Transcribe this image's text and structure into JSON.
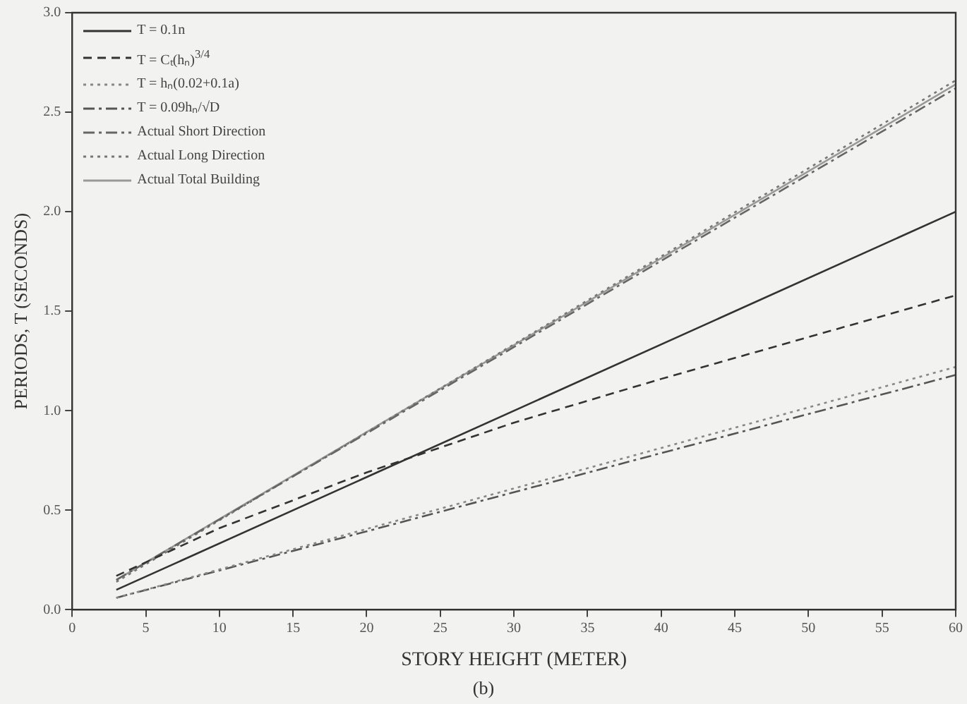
{
  "chart_data": {
    "type": "line",
    "xlabel": "STORY HEIGHT (METER)",
    "ylabel": "PERIODS, T (SECONDS)",
    "annotations": [
      "(b)"
    ],
    "xlim": [
      0,
      60
    ],
    "xticks": [
      0,
      5,
      10,
      15,
      20,
      25,
      30,
      35,
      40,
      45,
      50,
      55,
      60
    ],
    "ylim": [
      0,
      3
    ],
    "yticks": [
      {
        "value": 0,
        "label": "0.0"
      },
      {
        "value": 0.5,
        "label": "0.5"
      },
      {
        "value": 1,
        "label": "1.0"
      },
      {
        "value": 1.5,
        "label": "1.5"
      },
      {
        "value": 2,
        "label": "2.0"
      },
      {
        "value": 2.5,
        "label": "2.5"
      },
      {
        "value": 3,
        "label": "3.0"
      }
    ],
    "grid": false,
    "legend": "top left",
    "marker": "none",
    "series": [
      {
        "name": "T = 0.1n",
        "color": "#333333",
        "line_style": "solid",
        "x": [
          3,
          60
        ],
        "values": [
          0.1,
          2.0
        ]
      },
      {
        "name": "T = Cₜ(hₙ)$^{3/4}$",
        "color": "#333333",
        "line_style": "dashed",
        "x": [
          3,
          10,
          20,
          30,
          40,
          50,
          60
        ],
        "values": [
          0.17,
          0.41,
          0.69,
          0.94,
          1.16,
          1.37,
          1.58
        ]
      },
      {
        "name": "T = hₙ(0.02+0.1a)",
        "color": "#888888",
        "line_style": "dotted",
        "x": [
          3,
          60
        ],
        "values": [
          0.06,
          1.22
        ]
      },
      {
        "name": "T = 0.09hₙ/√D",
        "color": "#555555",
        "line_style": "dashdot",
        "x": [
          3,
          60
        ],
        "values": [
          0.06,
          1.18
        ]
      },
      {
        "name": "Actual Short Direction",
        "color": "#666666",
        "line_style": "dashdot",
        "x": [
          3,
          60
        ],
        "values": [
          0.15,
          2.62
        ]
      },
      {
        "name": "Actual Long Direction",
        "color": "#777777",
        "line_style": "dotted",
        "x": [
          3,
          60
        ],
        "values": [
          0.14,
          2.66
        ]
      },
      {
        "name": "Actual Total Building",
        "color": "#999999",
        "line_style": "solid",
        "x": [
          3,
          60
        ],
        "values": [
          0.15,
          2.64
        ]
      }
    ]
  }
}
